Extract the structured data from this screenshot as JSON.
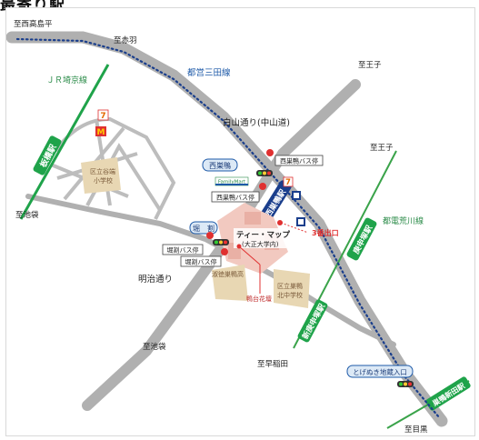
{
  "header": {
    "title": "最寄り駅"
  },
  "directions": {
    "nishi_takashimadaira": "至西高島平",
    "akabane": "至赤羽",
    "oji_top": "至王子",
    "oji_right": "至王子",
    "ikebukuro_left": "至池袋",
    "ikebukuro_bottom": "至池袋",
    "waseda": "至早稲田",
    "meguro": "至目黒"
  },
  "lines": {
    "jr_saikyo": "ＪＲ埼京線",
    "toei_mita": "都営三田線",
    "toden_arakawa": "都電荒川線"
  },
  "roads": {
    "hakusan": "白山通り(中山道)",
    "meiji": "明治通り"
  },
  "stations": {
    "itabashi": "板橋駅",
    "nishisugamo": "西巣鴨駅",
    "shin_koshinzuka": "新庚申塚駅",
    "koshinzuka": "庚申塚駅",
    "sugamo_shinden": "巣鴨新田駅"
  },
  "intersections": {
    "nishisugamo": "西巣鴨",
    "horiwari": "堀　割",
    "togenuki": "とげぬき地蔵入口"
  },
  "bus_stops": {
    "nishisugamo_1": "西巣鴨バス停",
    "nishisugamo_2": "西巣鴨バス停",
    "horiwari_1": "堀割バス停",
    "horiwari_2": "堀割バス停"
  },
  "landmarks": {
    "company_name": "ティー・マップ",
    "company_sub": "(大正大学内)",
    "exit_label": "3番出口",
    "familymart": "FamilyMart",
    "tomb": "鴨台花壇",
    "school_tani": "区立谷端",
    "school_tani_2": "小学校",
    "school_sugamo_kita": "区立巣鴨",
    "school_sugamo_kita_2": "北中学校",
    "school_shukutoku": "淑徳巣鴨高"
  },
  "icons": {
    "seven_eleven": "seven-eleven-icon",
    "mcdonalds": "mcdonalds-icon",
    "police": "police-icon",
    "traffic_signal": "traffic-signal-icon",
    "bus": "bus-icon"
  },
  "colors": {
    "road": "#b0b0b0",
    "jr_line": "#1fa34a",
    "subway": "#1a3e8c",
    "subway_label": "#1e5aa8",
    "tram_line": "#3aa34a",
    "exit_red": "#e03030",
    "campus_pink": "#f2c9c0",
    "school_tan": "#e8d7b3"
  }
}
